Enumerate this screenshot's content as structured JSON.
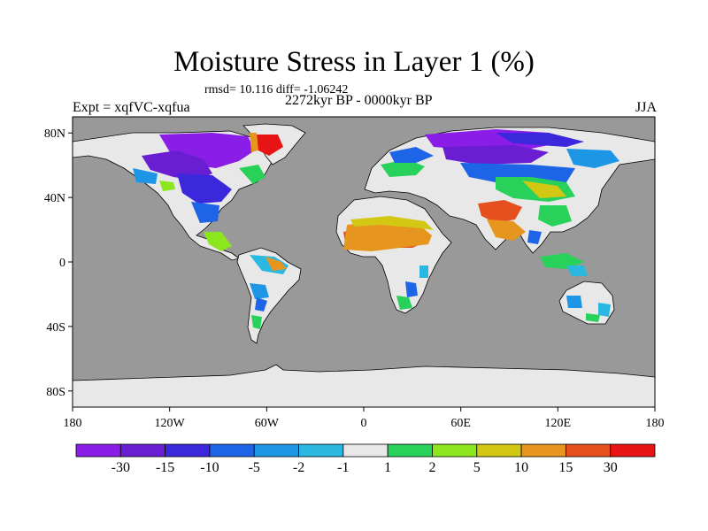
{
  "header": {
    "title": "Moisture Stress in Layer 1 (%)",
    "stats": "rmsd= 10.116 diff= -1.06242",
    "period": "2272kyr BP - 0000kyr BP",
    "experiment": "Expt = xqfVC-xqfua",
    "season": "JJA"
  },
  "axes": {
    "lon_labels": [
      "180",
      "120W",
      "60W",
      "0",
      "60E",
      "120E",
      "180"
    ],
    "lat_labels": [
      "80N",
      "40N",
      "0",
      "40S",
      "80S"
    ]
  },
  "colorbar": {
    "labels": [
      "-30",
      "-15",
      "-10",
      "-5",
      "-2",
      "-1",
      "1",
      "2",
      "5",
      "10",
      "15",
      "30"
    ],
    "colors": [
      "#8a1ee6",
      "#6a1ed2",
      "#3c28dc",
      "#1e64e6",
      "#1e96e6",
      "#2ab8e0",
      "#e8e8e8",
      "#28d25a",
      "#8ce61e",
      "#d2c814",
      "#e6961e",
      "#e6501e",
      "#e61414"
    ]
  },
  "colors": {
    "ocean": "#999999",
    "land_neutral": "#e8e8e8"
  }
}
